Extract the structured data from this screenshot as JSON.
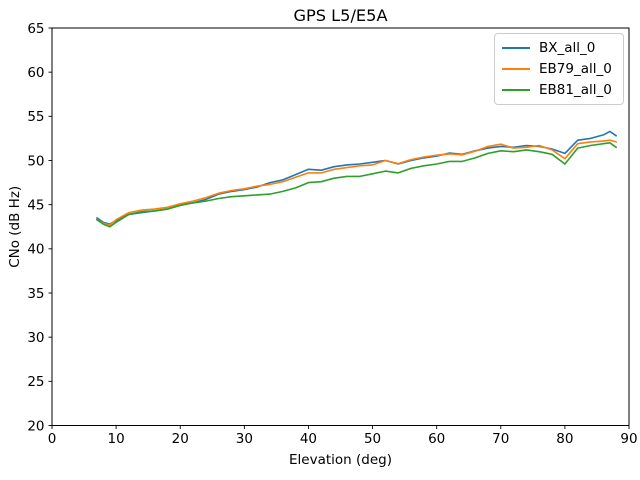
{
  "figure": {
    "background": "#ffffff",
    "spine_color": "#000000",
    "text_color": "#000000"
  },
  "legend": {
    "position": "upper right",
    "entries": [
      "BX_all_0",
      "EB79_all_0",
      "EB81_all_0"
    ]
  },
  "chart_data": {
    "type": "line",
    "title": "GPS L5/E5A",
    "xlabel": "Elevation (deg)",
    "ylabel": "CNo (dB Hz)",
    "xlim": [
      0,
      90
    ],
    "ylim": [
      20,
      65
    ],
    "xticks": [
      0,
      10,
      20,
      30,
      40,
      50,
      60,
      70,
      80,
      90
    ],
    "yticks": [
      20,
      25,
      30,
      35,
      40,
      45,
      50,
      55,
      60,
      65
    ],
    "grid": false,
    "legend_position": "upper right",
    "x": [
      7,
      8,
      9,
      10,
      12,
      14,
      16,
      18,
      20,
      22,
      24,
      26,
      28,
      30,
      32,
      34,
      36,
      38,
      40,
      42,
      44,
      46,
      48,
      50,
      52,
      54,
      56,
      58,
      60,
      62,
      64,
      66,
      68,
      70,
      72,
      74,
      76,
      78,
      80,
      82,
      84,
      86,
      87,
      88
    ],
    "series": [
      {
        "name": "BX_all_0",
        "color": "#1f77b4",
        "values": [
          43.5,
          43.0,
          42.8,
          43.2,
          43.9,
          44.1,
          44.3,
          44.5,
          45.0,
          45.2,
          45.6,
          46.2,
          46.5,
          46.7,
          47.0,
          47.5,
          47.8,
          48.4,
          49.0,
          48.9,
          49.3,
          49.5,
          49.6,
          49.8,
          50.0,
          49.6,
          50.0,
          50.3,
          50.5,
          50.85,
          50.7,
          51.1,
          51.4,
          51.6,
          51.5,
          51.7,
          51.6,
          51.3,
          50.8,
          52.3,
          52.5,
          52.9,
          53.3,
          52.8
        ]
      },
      {
        "name": "EB79_all_0",
        "color": "#ff7f0e",
        "values": [
          43.3,
          42.9,
          42.7,
          43.3,
          44.1,
          44.4,
          44.5,
          44.7,
          45.1,
          45.4,
          45.8,
          46.3,
          46.6,
          46.8,
          47.1,
          47.3,
          47.6,
          48.1,
          48.6,
          48.6,
          49.0,
          49.2,
          49.4,
          49.5,
          50.0,
          49.65,
          50.1,
          50.4,
          50.6,
          50.75,
          50.65,
          51.05,
          51.6,
          51.85,
          51.4,
          51.5,
          51.7,
          51.2,
          50.2,
          51.9,
          52.1,
          52.2,
          52.3,
          52.1
        ]
      },
      {
        "name": "EB81_all_0",
        "color": "#2ca02c",
        "values": [
          43.3,
          42.8,
          42.5,
          43.0,
          43.9,
          44.2,
          44.3,
          44.5,
          44.9,
          45.2,
          45.4,
          45.7,
          45.9,
          46.0,
          46.1,
          46.2,
          46.5,
          46.9,
          47.5,
          47.6,
          48.0,
          48.2,
          48.2,
          48.5,
          48.8,
          48.6,
          49.1,
          49.4,
          49.6,
          49.9,
          49.9,
          50.3,
          50.8,
          51.1,
          51.0,
          51.2,
          51.0,
          50.7,
          49.6,
          51.4,
          51.7,
          51.9,
          52.0,
          51.5
        ]
      }
    ]
  }
}
